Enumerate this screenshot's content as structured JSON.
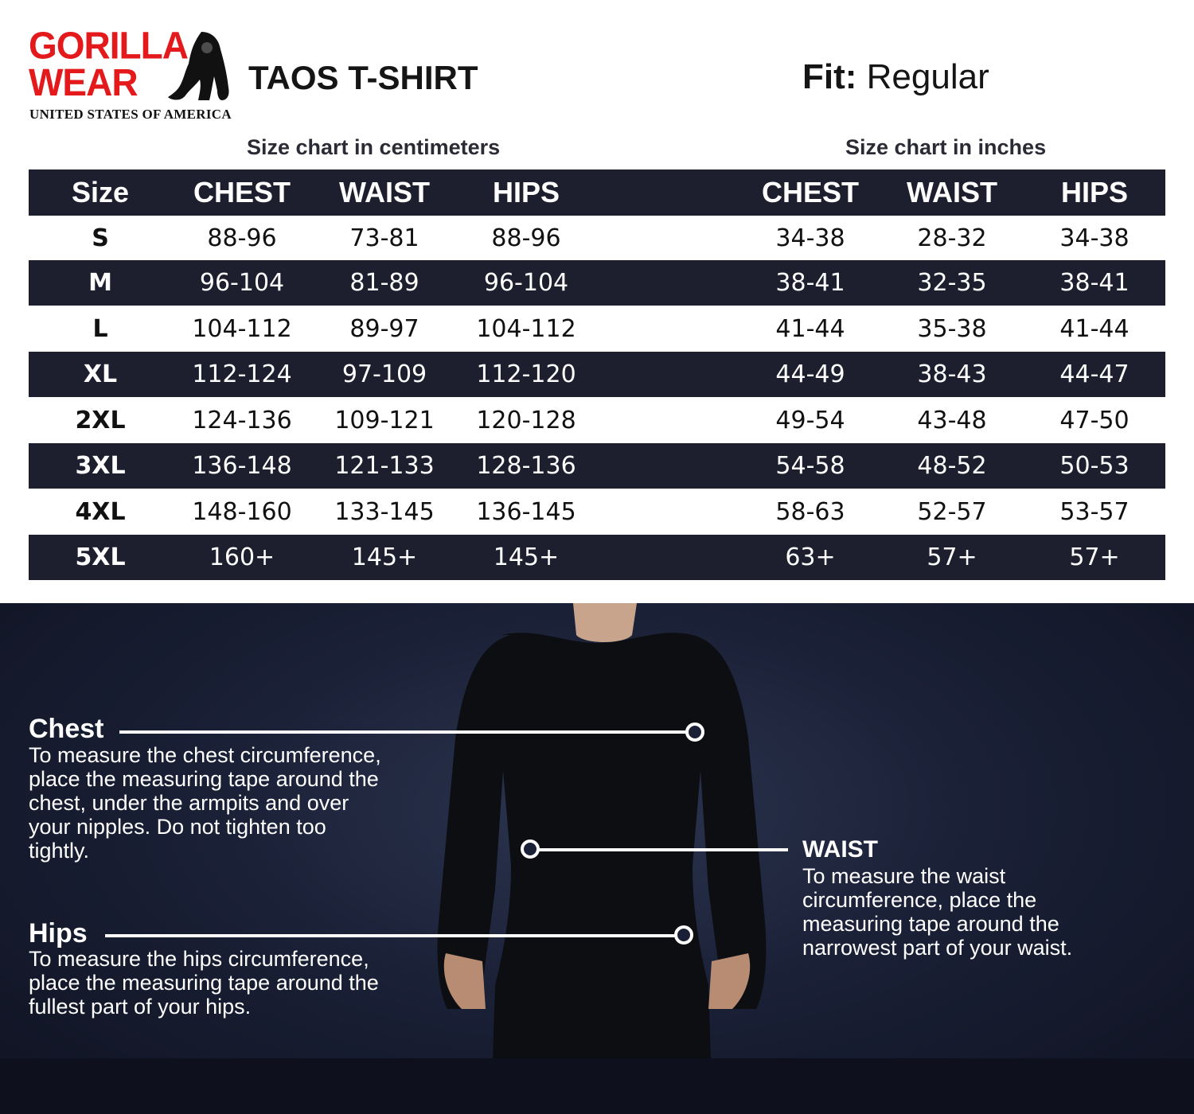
{
  "brand": {
    "name_line1": "GORILLA",
    "name_line2": "WEAR",
    "tagline": "UNITED STATES OF AMERICA",
    "logo_color": "#e3191b"
  },
  "product": {
    "title": "TAOS T-SHIRT",
    "fit_label": "Fit:",
    "fit_value": "Regular"
  },
  "subtitles": {
    "cm": "Size chart in centimeters",
    "inches": "Size chart in inches"
  },
  "table": {
    "headers": [
      "Size",
      "CHEST",
      "WAIST",
      "HIPS",
      "CHEST",
      "WAIST",
      "HIPS"
    ],
    "rows": [
      [
        "S",
        "88-96",
        "73-81",
        "88-96",
        "34-38",
        "28-32",
        "34-38"
      ],
      [
        "M",
        "96-104",
        "81-89",
        "96-104",
        "38-41",
        "32-35",
        "38-41"
      ],
      [
        "L",
        "104-112",
        "89-97",
        "104-112",
        "41-44",
        "35-38",
        "41-44"
      ],
      [
        "XL",
        "112-124",
        "97-109",
        "112-120",
        "44-49",
        "38-43",
        "44-47"
      ],
      [
        "2XL",
        "124-136",
        "109-121",
        "120-128",
        "49-54",
        "43-48",
        "47-50"
      ],
      [
        "3XL",
        "136-148",
        "121-133",
        "128-136",
        "54-58",
        "48-52",
        "50-53"
      ],
      [
        "4XL",
        "148-160",
        "133-145",
        "136-145",
        "58-63",
        "52-57",
        "53-57"
      ],
      [
        "5XL",
        "160+",
        "145+",
        "145+",
        "63+",
        "57+",
        "57+"
      ]
    ],
    "dark_color": "#1e1f2e"
  },
  "guide": {
    "chest": {
      "title": "Chest",
      "text": "To measure the chest circumference, place the measuring tape around the chest, under the armpits and over your nipples. Do not tighten too tightly."
    },
    "waist": {
      "title": "WAIST",
      "text": "To measure the waist circumference, place the measuring tape around the narrowest part of your waist."
    },
    "hips": {
      "title": "Hips",
      "text": "To measure the hips circumference, place the measuring tape around the fullest part of your hips."
    }
  }
}
